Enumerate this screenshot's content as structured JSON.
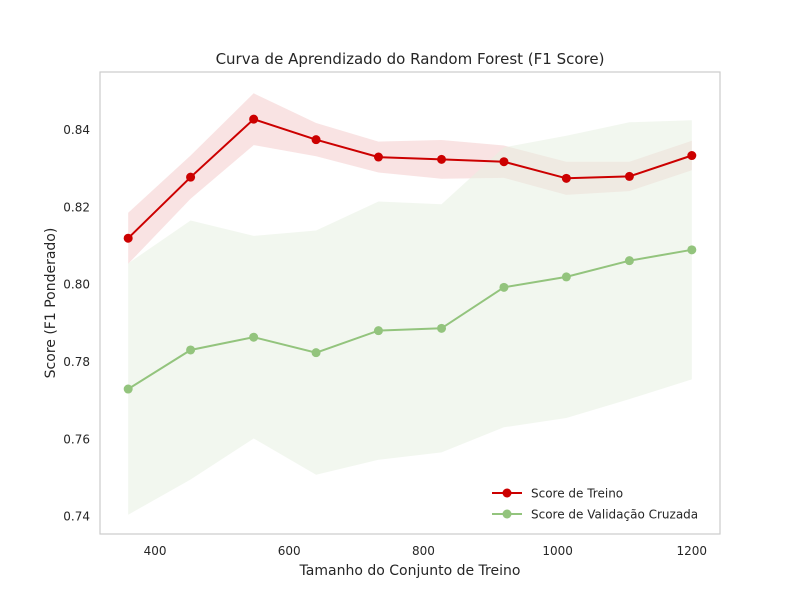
{
  "chart_data": {
    "type": "line",
    "title": "Curva de Aprendizado do Random Forest (F1 Score)",
    "xlabel": "Tamanho do Conjunto de Treino",
    "ylabel": "Score (F1 Ponderado)",
    "xlim": [
      318,
      1242
    ],
    "ylim": [
      0.7355,
      0.855
    ],
    "x_ticks": [
      400,
      600,
      800,
      1000,
      1200
    ],
    "y_ticks": [
      0.74,
      0.76,
      0.78,
      0.8,
      0.82,
      0.84
    ],
    "x_tick_labels": [
      "400",
      "600",
      "800",
      "1000",
      "1200"
    ],
    "y_tick_labels": [
      "0.74",
      "0.76",
      "0.78",
      "0.80",
      "0.82",
      "0.84"
    ],
    "grid": false,
    "legend_position": "lower-right",
    "x": [
      360,
      453,
      547,
      640,
      733,
      827,
      920,
      1013,
      1107,
      1200
    ],
    "series": [
      {
        "name": "Score de Treino",
        "color": "#cc0000",
        "band_color": "#f4cccc",
        "values": [
          0.812,
          0.8278,
          0.8428,
          0.8375,
          0.833,
          0.8324,
          0.8318,
          0.8275,
          0.828,
          0.8334
        ],
        "upper": [
          0.8186,
          0.8334,
          0.8495,
          0.8418,
          0.837,
          0.8374,
          0.836,
          0.8318,
          0.8318,
          0.8372
        ],
        "lower": [
          0.8054,
          0.8222,
          0.8361,
          0.8332,
          0.829,
          0.8274,
          0.8276,
          0.8232,
          0.8242,
          0.8296
        ]
      },
      {
        "name": "Score de Validação Cruzada",
        "color": "#93c47d",
        "band_color": "#e8f0e1",
        "values": [
          0.773,
          0.7831,
          0.7864,
          0.7824,
          0.7881,
          0.7887,
          0.7993,
          0.802,
          0.8062,
          0.809
        ],
        "upper": [
          0.8055,
          0.8166,
          0.8126,
          0.814,
          0.8215,
          0.8208,
          0.8355,
          0.8385,
          0.842,
          0.8425
        ],
        "lower": [
          0.7405,
          0.7496,
          0.7602,
          0.7508,
          0.7547,
          0.7566,
          0.7631,
          0.7655,
          0.7704,
          0.7755
        ]
      }
    ]
  }
}
